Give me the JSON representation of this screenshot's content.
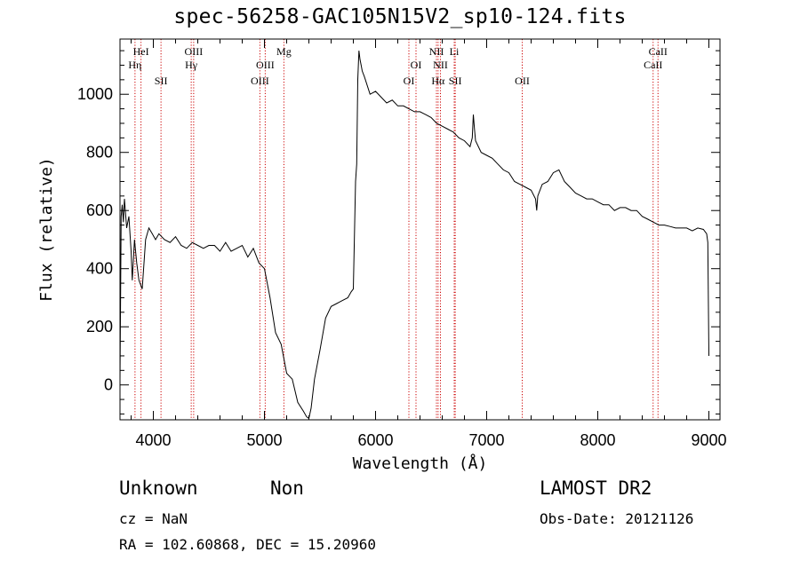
{
  "chart_data": {
    "type": "line",
    "title": "spec-56258-GAC105N15V2_sp10-124.fits",
    "xlabel": "Wavelength (Å)",
    "ylabel": "Flux (relative)",
    "xlim": [
      3700,
      9100
    ],
    "ylim": [
      -120,
      1190
    ],
    "x_ticks": [
      4000,
      5000,
      6000,
      7000,
      8000,
      9000
    ],
    "y_ticks": [
      0,
      200,
      400,
      600,
      800,
      1000
    ],
    "grid": false,
    "series": [
      {
        "x": [
          3700,
          3710,
          3720,
          3730,
          3740,
          3760,
          3780,
          3800,
          3810,
          3830,
          3850,
          3870,
          3900,
          3930,
          3960,
          3990,
          4020,
          4050,
          4100,
          4150,
          4200,
          4250,
          4300,
          4350,
          4400,
          4450,
          4500,
          4550,
          4600,
          4650,
          4700,
          4750,
          4800,
          4850,
          4900,
          4950,
          5000,
          5050,
          5100,
          5150,
          5200,
          5250,
          5300,
          5350,
          5380,
          5400,
          5420,
          5450,
          5500,
          5550,
          5600,
          5650,
          5700,
          5750,
          5780,
          5800,
          5820,
          5830,
          5840,
          5850,
          5860,
          5870,
          5880,
          5900,
          5950,
          6000,
          6050,
          6100,
          6150,
          6200,
          6250,
          6300,
          6350,
          6400,
          6450,
          6500,
          6550,
          6600,
          6650,
          6700,
          6750,
          6800,
          6850,
          6870,
          6880,
          6890,
          6900,
          6950,
          7000,
          7050,
          7100,
          7150,
          7200,
          7250,
          7300,
          7350,
          7400,
          7440,
          7450,
          7460,
          7500,
          7550,
          7600,
          7650,
          7700,
          7750,
          7800,
          7850,
          7900,
          7950,
          8000,
          8050,
          8100,
          8150,
          8200,
          8250,
          8300,
          8350,
          8400,
          8450,
          8500,
          8550,
          8600,
          8650,
          8700,
          8750,
          8800,
          8850,
          8900,
          8950,
          8980,
          8990,
          9000
        ],
        "y": [
          20,
          580,
          620,
          560,
          640,
          540,
          580,
          460,
          360,
          500,
          420,
          360,
          330,
          500,
          540,
          520,
          500,
          520,
          500,
          490,
          510,
          480,
          470,
          490,
          480,
          470,
          480,
          480,
          460,
          490,
          460,
          470,
          480,
          440,
          470,
          420,
          400,
          300,
          180,
          140,
          40,
          20,
          -60,
          -90,
          -110,
          -115,
          -80,
          20,
          120,
          230,
          270,
          280,
          290,
          300,
          320,
          330,
          700,
          760,
          1050,
          1150,
          1120,
          1100,
          1080,
          1060,
          1000,
          1010,
          990,
          970,
          980,
          960,
          960,
          950,
          940,
          940,
          930,
          920,
          900,
          890,
          880,
          870,
          850,
          840,
          820,
          850,
          930,
          880,
          840,
          800,
          790,
          780,
          760,
          740,
          730,
          700,
          690,
          680,
          670,
          640,
          600,
          650,
          690,
          700,
          730,
          740,
          700,
          680,
          660,
          650,
          640,
          640,
          630,
          620,
          620,
          600,
          610,
          610,
          600,
          600,
          580,
          570,
          560,
          550,
          550,
          545,
          540,
          540,
          540,
          530,
          540,
          535,
          520,
          490,
          100
        ]
      }
    ],
    "line_labels": [
      {
        "name": "HeI",
        "x": 3889,
        "row": 1
      },
      {
        "name": "Hη",
        "x": 3835,
        "row": 2
      },
      {
        "name": "SII",
        "x": 4069,
        "row": 3
      },
      {
        "name": "OIII",
        "x": 4363,
        "row": 1
      },
      {
        "name": "Hγ",
        "x": 4341,
        "row": 2
      },
      {
        "name": "OIII",
        "x": 4959,
        "row": 3
      },
      {
        "name": "OIII",
        "x": 5007,
        "row": 2
      },
      {
        "name": "Mg",
        "x": 5175,
        "row": 1
      },
      {
        "name": "OI",
        "x": 6300,
        "row": 3
      },
      {
        "name": "OI",
        "x": 6364,
        "row": 2
      },
      {
        "name": "NII",
        "x": 6548,
        "row": 1
      },
      {
        "name": "NII",
        "x": 6584,
        "row": 2
      },
      {
        "name": "Hα",
        "x": 6563,
        "row": 3
      },
      {
        "name": "Li",
        "x": 6708,
        "row": 1
      },
      {
        "name": "SII",
        "x": 6717,
        "row": 3
      },
      {
        "name": "OII",
        "x": 7320,
        "row": 3
      },
      {
        "name": "CaII",
        "x": 8542,
        "row": 1
      },
      {
        "name": "CaII",
        "x": 8498,
        "row": 2
      }
    ],
    "line_positions": [
      3835,
      3889,
      4069,
      4341,
      4363,
      4959,
      5007,
      5175,
      6300,
      6364,
      6548,
      6563,
      6584,
      6708,
      6717,
      7320,
      8498,
      8542
    ],
    "colors": {
      "axes": "#000000",
      "spectrum": "#000000",
      "lines": "#cc0000"
    }
  },
  "footer": {
    "class_label": "Unknown",
    "subclass_label": "Non",
    "survey": "LAMOST DR2",
    "cz": "cz = NaN",
    "obs_date": "Obs-Date: 20121126",
    "coords": "RA = 102.60868, DEC =  15.20960"
  }
}
